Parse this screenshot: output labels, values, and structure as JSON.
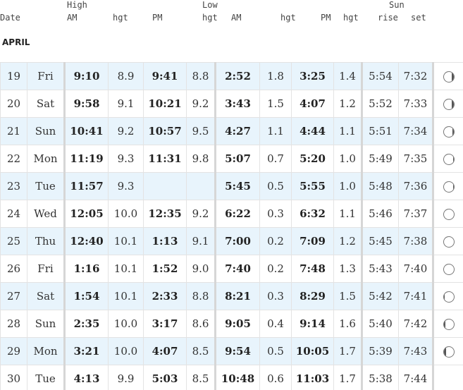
{
  "header": {
    "date": "Date",
    "high": "High",
    "high_am": "AM",
    "high_hgt": "hgt",
    "high_pm": "PM",
    "high_pm_hgt": "hgt",
    "low": "Low",
    "low_am": "AM",
    "low_hgt": "hgt",
    "low_pm": "PM",
    "low_pm_hgt": "hgt",
    "sun": "Sun",
    "sun_rise": "rise",
    "sun_set": "set"
  },
  "month": "APRIL",
  "rows": [
    {
      "date": "19",
      "day": "Fri",
      "high_am": "9:10",
      "high_am_hgt": "8.9",
      "high_pm": "9:41",
      "high_pm_hgt": "8.8",
      "low_am": "2:52",
      "low_am_hgt": "1.8",
      "low_pm": "3:25",
      "low_pm_hgt": "1.4",
      "sunrise": "5:54",
      "sunset": "7:32",
      "moon_icon": "moon-gibbous-icon",
      "moon_lit": 0.8
    },
    {
      "date": "20",
      "day": "Sat",
      "high_am": "9:58",
      "high_am_hgt": "9.1",
      "high_pm": "10:21",
      "high_pm_hgt": "9.2",
      "low_am": "3:43",
      "low_am_hgt": "1.5",
      "low_pm": "4:07",
      "low_pm_hgt": "1.2",
      "sunrise": "5:52",
      "sunset": "7:33",
      "moon_icon": "moon-gibbous-icon",
      "moon_lit": 0.84
    },
    {
      "date": "21",
      "day": "Sun",
      "high_am": "10:41",
      "high_am_hgt": "9.2",
      "high_pm": "10:57",
      "high_pm_hgt": "9.5",
      "low_am": "4:27",
      "low_am_hgt": "1.1",
      "low_pm": "4:44",
      "low_pm_hgt": "1.1",
      "sunrise": "5:51",
      "sunset": "7:34",
      "moon_icon": "moon-gibbous-icon",
      "moon_lit": 0.88
    },
    {
      "date": "22",
      "day": "Mon",
      "high_am": "11:19",
      "high_am_hgt": "9.3",
      "high_pm": "11:31",
      "high_pm_hgt": "9.8",
      "low_am": "5:07",
      "low_am_hgt": "0.7",
      "low_pm": "5:20",
      "low_pm_hgt": "1.0",
      "sunrise": "5:49",
      "sunset": "7:35",
      "moon_icon": "moon-gibbous-icon",
      "moon_lit": 0.92
    },
    {
      "date": "23",
      "day": "Tue",
      "high_am": "11:57",
      "high_am_hgt": "9.3",
      "high_pm": "",
      "high_pm_hgt": "",
      "low_am": "5:45",
      "low_am_hgt": "0.5",
      "low_pm": "5:55",
      "low_pm_hgt": "1.0",
      "sunrise": "5:48",
      "sunset": "7:36",
      "moon_icon": "moon-gibbous-icon",
      "moon_lit": 0.95
    },
    {
      "date": "24",
      "day": "Wed",
      "high_am": "12:05",
      "high_am_hgt": "10.0",
      "high_pm": "12:35",
      "high_pm_hgt": "9.2",
      "low_am": "6:22",
      "low_am_hgt": "0.3",
      "low_pm": "6:32",
      "low_pm_hgt": "1.1",
      "sunrise": "5:46",
      "sunset": "7:37",
      "moon_icon": "moon-full-icon",
      "moon_lit": 1.0
    },
    {
      "date": "25",
      "day": "Thu",
      "high_am": "12:40",
      "high_am_hgt": "10.1",
      "high_pm": "1:13",
      "high_pm_hgt": "9.1",
      "low_am": "7:00",
      "low_am_hgt": "0.2",
      "low_pm": "7:09",
      "low_pm_hgt": "1.2",
      "sunrise": "5:45",
      "sunset": "7:38",
      "moon_icon": "moon-full-icon",
      "moon_lit": 1.0
    },
    {
      "date": "26",
      "day": "Fri",
      "high_am": "1:16",
      "high_am_hgt": "10.1",
      "high_pm": "1:52",
      "high_pm_hgt": "9.0",
      "low_am": "7:40",
      "low_am_hgt": "0.2",
      "low_pm": "7:48",
      "low_pm_hgt": "1.3",
      "sunrise": "5:43",
      "sunset": "7:40",
      "moon_icon": "moon-full-icon",
      "moon_lit": 1.0
    },
    {
      "date": "27",
      "day": "Sat",
      "high_am": "1:54",
      "high_am_hgt": "10.1",
      "high_pm": "2:33",
      "high_pm_hgt": "8.8",
      "low_am": "8:21",
      "low_am_hgt": "0.3",
      "low_pm": "8:29",
      "low_pm_hgt": "1.5",
      "sunrise": "5:42",
      "sunset": "7:41",
      "moon_icon": "moon-waning-gibbous-icon",
      "moon_lit": 0.92
    },
    {
      "date": "28",
      "day": "Sun",
      "high_am": "2:35",
      "high_am_hgt": "10.0",
      "high_pm": "3:17",
      "high_pm_hgt": "8.6",
      "low_am": "9:05",
      "low_am_hgt": "0.4",
      "low_pm": "9:14",
      "low_pm_hgt": "1.6",
      "sunrise": "5:40",
      "sunset": "7:42",
      "moon_icon": "moon-waning-gibbous-icon",
      "moon_lit": 0.88
    },
    {
      "date": "29",
      "day": "Mon",
      "high_am": "3:21",
      "high_am_hgt": "10.0",
      "high_pm": "4:07",
      "high_pm_hgt": "8.5",
      "low_am": "9:54",
      "low_am_hgt": "0.5",
      "low_pm": "10:05",
      "low_pm_hgt": "1.7",
      "sunrise": "5:39",
      "sunset": "7:43",
      "moon_icon": "moon-waning-gibbous-icon",
      "moon_lit": 0.84
    },
    {
      "date": "30",
      "day": "Tue",
      "high_am": "4:13",
      "high_am_hgt": "9.9",
      "high_pm": "5:03",
      "high_pm_hgt": "8.5",
      "low_am": "10:48",
      "low_am_hgt": "0.6",
      "low_pm": "11:03",
      "low_pm_hgt": "1.7",
      "sunrise": "5:38",
      "sunset": "7:44",
      "moon_icon": "",
      "moon_lit": null
    }
  ]
}
